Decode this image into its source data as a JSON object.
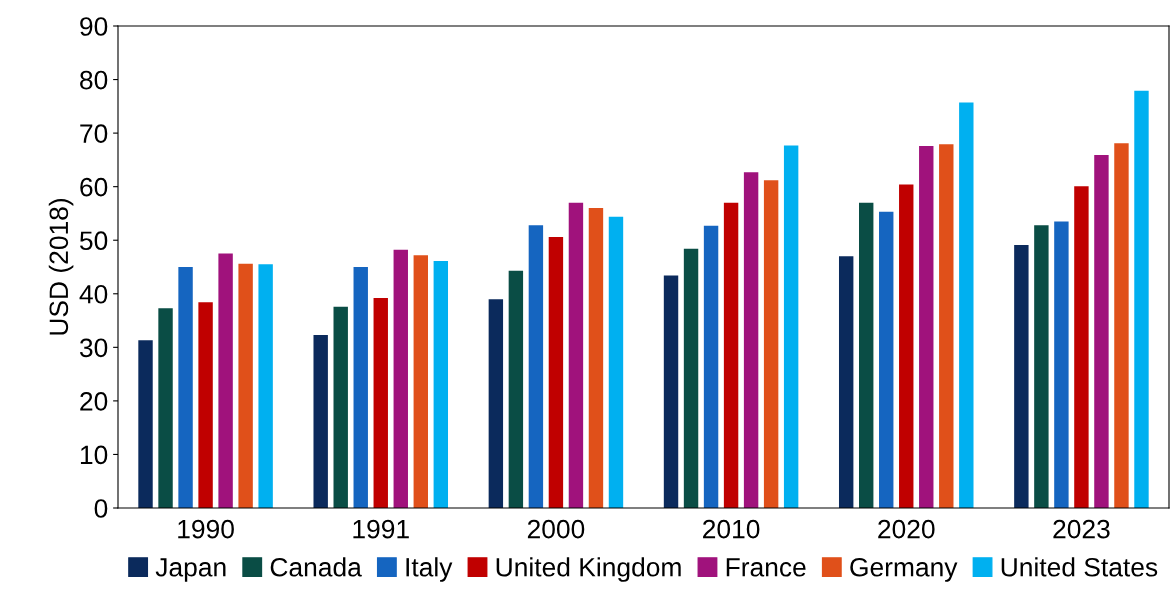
{
  "chart_data": {
    "type": "bar",
    "ylabel": "USD (2018)",
    "categories": [
      "1990",
      "1991",
      "2000",
      "2010",
      "2020",
      "2023"
    ],
    "series": [
      {
        "name": "Japan",
        "color": "#0b2a5c",
        "values": [
          31.3,
          32.3,
          39,
          43.4,
          47,
          49.1
        ]
      },
      {
        "name": "Canada",
        "color": "#0a4d45",
        "values": [
          37.3,
          37.6,
          44.3,
          48.4,
          57,
          52.8
        ]
      },
      {
        "name": "Italy",
        "color": "#1565c0",
        "values": [
          45,
          45,
          52.8,
          52.7,
          55.3,
          53.5
        ]
      },
      {
        "name": "United Kingdom",
        "color": "#c00000",
        "values": [
          38.4,
          39.2,
          50.6,
          57,
          60.4,
          60.1
        ]
      },
      {
        "name": "France",
        "color": "#a0127c",
        "values": [
          47.5,
          48.2,
          57,
          62.7,
          67.6,
          65.9
        ]
      },
      {
        "name": "Germany",
        "color": "#e0501a",
        "values": [
          45.6,
          47.2,
          56,
          61.2,
          67.9,
          68.1
        ]
      },
      {
        "name": "United States",
        "color": "#00b0f0",
        "values": [
          45.5,
          46.1,
          54.4,
          67.7,
          75.7,
          77.9
        ]
      }
    ],
    "ylim": [
      0,
      90
    ],
    "yticks": [
      0,
      10,
      20,
      30,
      40,
      50,
      60,
      70,
      80,
      90
    ],
    "grid": false,
    "legend": "bottom"
  }
}
